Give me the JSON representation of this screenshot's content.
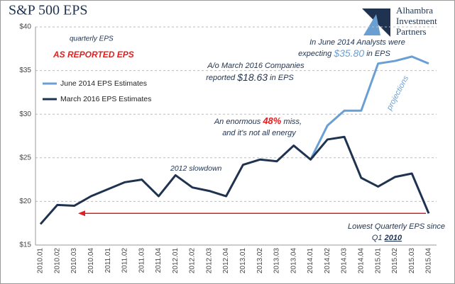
{
  "chart_data": {
    "type": "line",
    "title": "S&P 500 EPS",
    "logo": [
      "Alhambra",
      "Investment",
      "Partners"
    ],
    "categories": [
      "2010.01",
      "2010.02",
      "2010.03",
      "2010.04",
      "2011.01",
      "2011.02",
      "2011.03",
      "2011.04",
      "2012.01",
      "2012.02",
      "2012.03",
      "2012.04",
      "2013.01",
      "2013.02",
      "2013.03",
      "2013.04",
      "2014.01",
      "2014.02",
      "2014.03",
      "2014.04",
      "2015.01",
      "2015.02",
      "2015.03",
      "2015.04"
    ],
    "series": [
      {
        "name": "June 2014 EPS Estimates",
        "color": "#6a9fd4",
        "values": [
          null,
          null,
          null,
          null,
          null,
          null,
          null,
          null,
          null,
          null,
          null,
          null,
          null,
          null,
          null,
          null,
          24.8,
          28.7,
          30.4,
          30.4,
          35.8,
          36.1,
          36.6,
          35.8
        ]
      },
      {
        "name": "March 2016 EPS Estimates",
        "color": "#1f3350",
        "values": [
          17.4,
          19.6,
          19.5,
          20.6,
          21.4,
          22.2,
          22.5,
          20.6,
          23.0,
          21.6,
          21.2,
          20.6,
          24.2,
          24.8,
          24.6,
          26.4,
          24.8,
          27.1,
          27.4,
          22.7,
          21.7,
          22.8,
          23.2,
          18.63
        ]
      }
    ],
    "ylim": [
      15,
      40
    ],
    "yticks": [
      {
        "value": 15,
        "label": "$15"
      },
      {
        "value": 20,
        "label": "$20"
      },
      {
        "value": 25,
        "label": "$25"
      },
      {
        "value": 30,
        "label": "$30"
      },
      {
        "value": 35,
        "label": "$35"
      },
      {
        "value": 40,
        "label": "$40"
      }
    ],
    "grid": true,
    "legend": "left",
    "annotations": {
      "quarterly": "quarterly EPS",
      "reported": "AS REPORTED EPS",
      "analysts": [
        "In June 2014 Analysts were",
        "expecting",
        "$35.80",
        "in EPS"
      ],
      "companies": [
        "A/o March 2016 Companies",
        "reported",
        "$18.63",
        "in EPS"
      ],
      "miss": [
        "An enormous",
        "48%",
        "miss,",
        "and it's not all energy"
      ],
      "slowdown": "2012 slowdown",
      "projections": "projections",
      "lowest": [
        "Lowest Quarterly EPS since",
        "Q1",
        "2010"
      ]
    }
  }
}
